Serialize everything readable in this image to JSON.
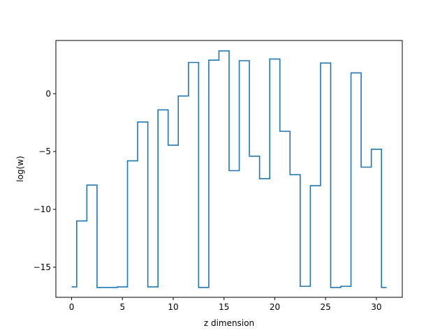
{
  "chart_data": {
    "type": "line",
    "drawstyle": "steps-mid",
    "title": "",
    "xlabel": "z dimension",
    "ylabel": "log(w)",
    "xlim": [
      -1.55,
      32.55
    ],
    "ylim": [
      -17.6,
      4.6
    ],
    "xticks": [
      0,
      5,
      10,
      15,
      20,
      25,
      30
    ],
    "yticks": [
      -15,
      -10,
      -5,
      0
    ],
    "grid": false,
    "legend": "none",
    "series": [
      {
        "color": "#1f77b4",
        "x": [
          0,
          1,
          2,
          3,
          4,
          5,
          6,
          7,
          8,
          9,
          10,
          11,
          12,
          13,
          14,
          15,
          16,
          17,
          18,
          19,
          20,
          21,
          22,
          23,
          24,
          25,
          26,
          27,
          28,
          29,
          30,
          31
        ],
        "y": [
          -16.7,
          -11.0,
          -7.9,
          -16.75,
          -16.75,
          -16.7,
          -5.8,
          -2.45,
          -16.7,
          -1.4,
          -4.45,
          -0.2,
          2.7,
          -16.75,
          2.9,
          3.7,
          -6.65,
          2.85,
          -5.4,
          -7.35,
          3.0,
          -3.25,
          -7.0,
          -16.65,
          -7.95,
          2.65,
          -16.75,
          -16.65,
          1.8,
          -6.35,
          -4.8,
          -16.75
        ]
      }
    ]
  }
}
